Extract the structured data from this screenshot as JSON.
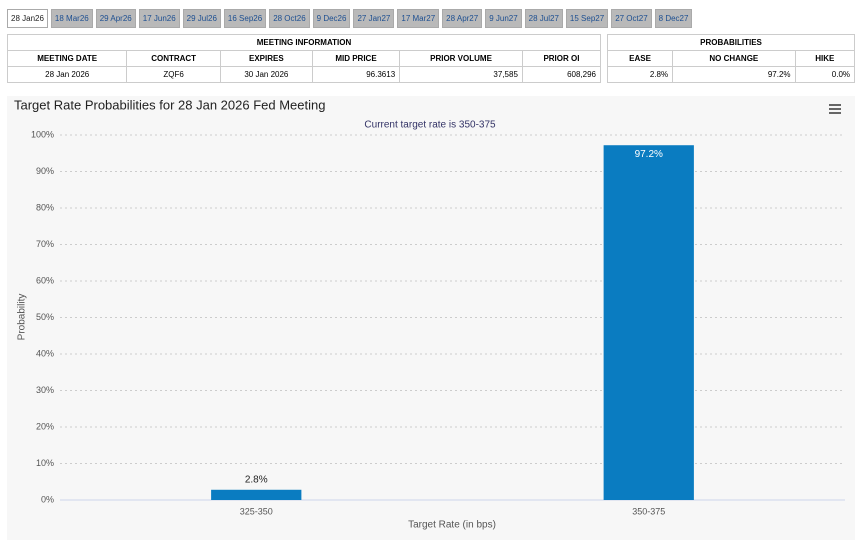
{
  "tabs": [
    "28 Jan26",
    "18 Mar26",
    "29 Apr26",
    "17 Jun26",
    "29 Jul26",
    "16 Sep26",
    "28 Oct26",
    "9 Dec26",
    "27 Jan27",
    "17 Mar27",
    "28 Apr27",
    "9 Jun27",
    "28 Jul27",
    "15 Sep27",
    "27 Oct27",
    "8 Dec27"
  ],
  "meeting_info": {
    "title": "MEETING INFORMATION",
    "columns": [
      "MEETING DATE",
      "CONTRACT",
      "EXPIRES",
      "MID PRICE",
      "PRIOR VOLUME",
      "PRIOR OI"
    ],
    "rows": [
      [
        "28 Jan 2026",
        "ZQF6",
        "30 Jan 2026",
        "96.3613",
        "37,585",
        "608,296"
      ]
    ]
  },
  "probabilities": {
    "title": "PROBABILITIES",
    "columns": [
      "EASE",
      "NO CHANGE",
      "HIKE"
    ],
    "rows": [
      [
        "2.8%",
        "97.2%",
        "0.0%"
      ]
    ]
  },
  "chart_data": {
    "type": "bar",
    "title": "Target Rate Probabilities for 28 Jan 2026 Fed Meeting",
    "subtitle": "Current target rate is 350-375",
    "x_label": "Target Rate (in bps)",
    "y_label": "Probability",
    "categories": [
      "325-350",
      "350-375"
    ],
    "values": [
      2.8,
      97.2
    ],
    "value_labels": [
      "2.8%",
      "97.2%"
    ],
    "color": "#0a7cc1",
    "ylim": [
      0,
      100
    ],
    "yticks": [
      {
        "value": 0,
        "label": "0%"
      },
      {
        "value": 10,
        "label": "10%"
      },
      {
        "value": 20,
        "label": "20%"
      },
      {
        "value": 30,
        "label": "30%"
      },
      {
        "value": 40,
        "label": "40%"
      },
      {
        "value": 50,
        "label": "50%"
      },
      {
        "value": 60,
        "label": "60%"
      },
      {
        "value": 70,
        "label": "70%"
      },
      {
        "value": 80,
        "label": "80%"
      },
      {
        "value": 90,
        "label": "90%"
      },
      {
        "value": 100,
        "label": "100%"
      }
    ],
    "grid": true
  }
}
